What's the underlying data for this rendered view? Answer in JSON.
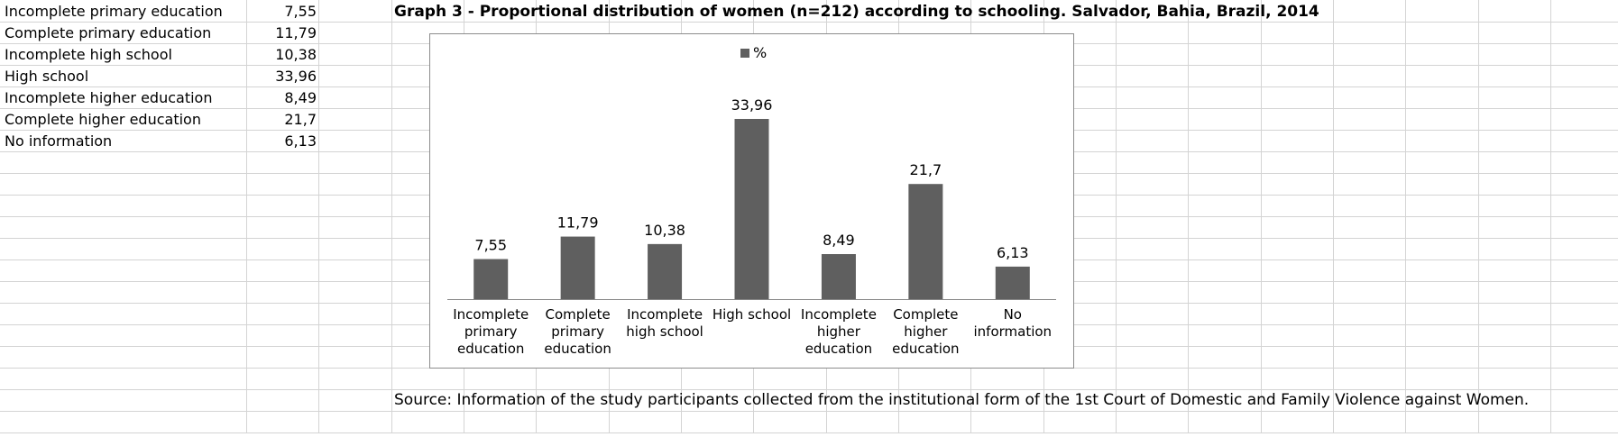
{
  "table": {
    "rows": [
      {
        "label": "Incomplete primary education",
        "value": "7,55"
      },
      {
        "label": "Complete primary education",
        "value": "11,79"
      },
      {
        "label": "Incomplete high school",
        "value": "10,38"
      },
      {
        "label": "High school",
        "value": "33,96"
      },
      {
        "label": "Incomplete higher education",
        "value": "8,49"
      },
      {
        "label": "Complete higher education",
        "value": "21,7"
      },
      {
        "label": "No information",
        "value": "6,13"
      }
    ]
  },
  "title": "Graph 3 - Proportional distribution of women (n=212) according to schooling. Salvador, Bahia, Brazil, 2014",
  "source": "Source: Information of the study participants collected from the institutional form of the 1st Court of Domestic and Family Violence against Women.",
  "colors": {
    "bar": "#5f5f5f",
    "grid": "#d4d4d4",
    "axis": "#868686"
  },
  "chart_data": {
    "type": "bar",
    "categories": [
      [
        "Incomplete",
        "primary",
        "education"
      ],
      [
        "Complete",
        "primary",
        "education"
      ],
      [
        "Incomplete",
        "high school"
      ],
      [
        "High school"
      ],
      [
        "Incomplete",
        "higher",
        "education"
      ],
      [
        "Complete",
        "higher",
        "education"
      ],
      [
        "No",
        "information"
      ]
    ],
    "series": [
      {
        "name": "%",
        "values": [
          7.55,
          11.79,
          10.38,
          33.96,
          8.49,
          21.7,
          6.13
        ],
        "labels": [
          "7,55",
          "11,79",
          "10,38",
          "33,96",
          "8,49",
          "21,7",
          "6,13"
        ]
      }
    ],
    "ylim": [
      0,
      40
    ],
    "grid": false,
    "legend": "top"
  }
}
